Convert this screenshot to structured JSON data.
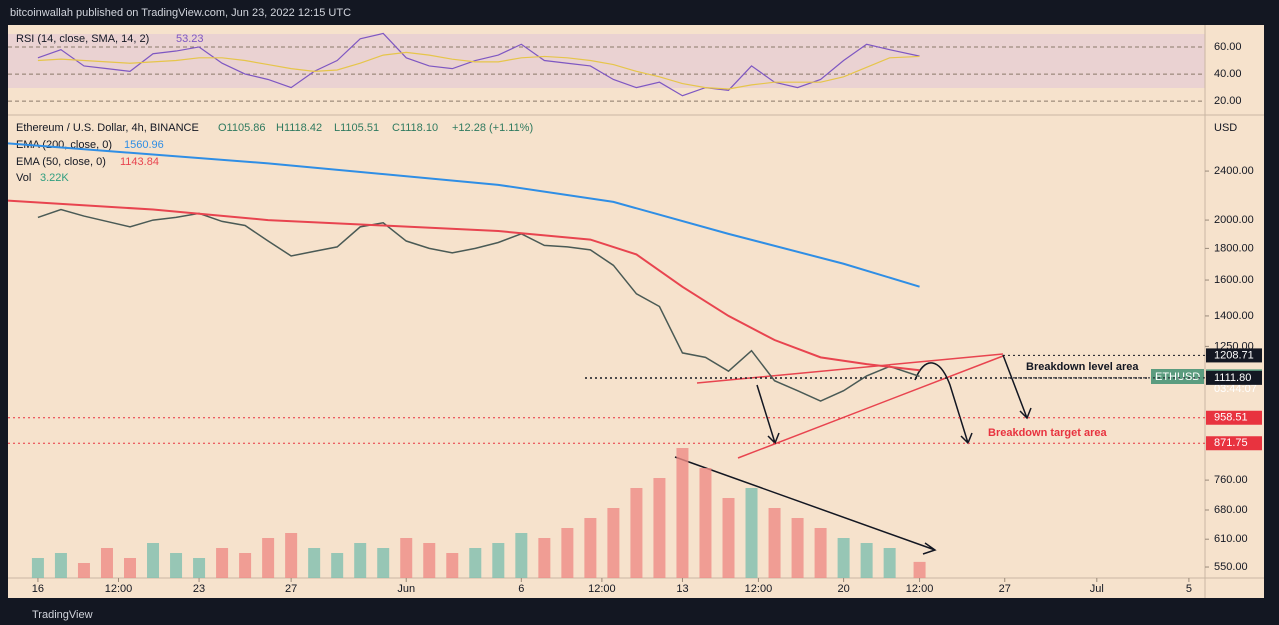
{
  "header": {
    "publisher": "bitcoinwallah published on TradingView.com, Jun 23, 2022 12:15 UTC",
    "footer": "TradingView"
  },
  "legend": {
    "rsi": "RSI (14, close, SMA, 14, 2)",
    "rsi_value": "53.23",
    "symbol": "Ethereum / U.S. Dollar, 4h, BINANCE",
    "open": "O1105.86",
    "high": "H1118.42",
    "low": "L1105.51",
    "close": "C1118.10",
    "change": "+12.28 (+1.11%)",
    "ema200": "EMA (200, close, 0)",
    "ema200_value": "1560.96",
    "ema50": "EMA (50, close, 0)",
    "ema50_value": "1143.84",
    "vol": "Vol",
    "vol_value": "3.22K",
    "currency": "USD"
  },
  "annotations": {
    "level": "Breakdown level area",
    "target": "Breakdown target area",
    "symbol_tag": "ETHUSD",
    "countdown": "03:44:07"
  },
  "chart_data": {
    "type": "line",
    "log_scale": true,
    "xlim": [
      -1.3,
      50.7
    ],
    "xticks": [
      {
        "value": 0,
        "label": "16"
      },
      {
        "value": 3.5,
        "label": "12:00"
      },
      {
        "value": 7,
        "label": "23"
      },
      {
        "value": 11,
        "label": "27"
      },
      {
        "value": 16,
        "label": "Jun"
      },
      {
        "value": 21,
        "label": "6"
      },
      {
        "value": 24.5,
        "label": "12:00"
      },
      {
        "value": 28,
        "label": "13"
      },
      {
        "value": 31.3,
        "label": "12:00"
      },
      {
        "value": 35,
        "label": "20"
      },
      {
        "value": 38.3,
        "label": "12:00"
      },
      {
        "value": 42,
        "label": "27"
      },
      {
        "value": 46,
        "label": "Jul"
      },
      {
        "value": 50,
        "label": "5"
      }
    ],
    "ylim": [
      528,
      2924
    ],
    "yticks": [
      {
        "value": 550,
        "label": "550.00"
      },
      {
        "value": 610,
        "label": "610.00"
      },
      {
        "value": 680,
        "label": "680.00"
      },
      {
        "value": 760,
        "label": "760.00"
      },
      {
        "value": 1250,
        "label": "1250.00"
      },
      {
        "value": 1400,
        "label": "1400.00"
      },
      {
        "value": 1600,
        "label": "1600.00"
      },
      {
        "value": 1800,
        "label": "1800.00"
      },
      {
        "value": 2000,
        "label": "2000.00"
      },
      {
        "value": 2400,
        "label": "2400.00"
      }
    ],
    "levels": [
      {
        "value": 1208.71,
        "label": "1208.71",
        "color": "#131722"
      },
      {
        "value": 1118.1,
        "label": "1118.10",
        "color": "#5b9c7f"
      },
      {
        "value": 1111.8,
        "label": "1111.80",
        "color": "#131722"
      },
      {
        "value": 958.51,
        "label": "958.51",
        "color": "#e8333f"
      },
      {
        "value": 871.75,
        "label": "871.75",
        "color": "#e8333f"
      }
    ],
    "series": [
      {
        "name": "ETHUSD",
        "color": "#4a5a55",
        "x": [
          0,
          1,
          2,
          3,
          4,
          5,
          6,
          7,
          8,
          9,
          10,
          11,
          12,
          13,
          14,
          15,
          16,
          17,
          18,
          19,
          20,
          21,
          22,
          23,
          24,
          25,
          26,
          27,
          28,
          29,
          30,
          31,
          32,
          33,
          34,
          35,
          36,
          37,
          38.3
        ],
        "values": [
          2020,
          2080,
          2030,
          1990,
          1950,
          2000,
          2020,
          2050,
          1990,
          1960,
          1850,
          1750,
          1780,
          1810,
          1950,
          1980,
          1850,
          1800,
          1770,
          1800,
          1840,
          1900,
          1820,
          1810,
          1790,
          1690,
          1520,
          1450,
          1220,
          1200,
          1140,
          1230,
          1100,
          1060,
          1020,
          1060,
          1120,
          1160,
          1118.1
        ]
      },
      {
        "name": "EMA (200, close, 0)",
        "color": "#2f8ee5",
        "x": [
          -1.3,
          10,
          20,
          25,
          30,
          35,
          38.3
        ],
        "values": [
          2660,
          2470,
          2280,
          2140,
          1900,
          1700,
          1560.96
        ]
      },
      {
        "name": "EMA (50, close, 0)",
        "color": "#e8444f",
        "x": [
          -1.3,
          5,
          10,
          15,
          20,
          24,
          26,
          28,
          30,
          32,
          34,
          36,
          38.3
        ],
        "values": [
          2150,
          2080,
          2000,
          1960,
          1920,
          1860,
          1760,
          1560,
          1400,
          1280,
          1200,
          1170,
          1143.84
        ]
      }
    ],
    "volume": {
      "up_color": "#7fbfaf",
      "down_color": "#ef8c86",
      "y2lim": [
        0,
        30
      ],
      "values": [
        4,
        5,
        3,
        6,
        4,
        7,
        5,
        4,
        6,
        5,
        8,
        9,
        6,
        5,
        7,
        6,
        8,
        7,
        5,
        6,
        7,
        9,
        8,
        10,
        12,
        14,
        18,
        20,
        26,
        22,
        16,
        18,
        14,
        12,
        10,
        8,
        7,
        6,
        3.22
      ]
    },
    "rsi": {
      "ylim": [
        12,
        74
      ],
      "yticks": [
        {
          "value": 20,
          "label": "20.00"
        },
        {
          "value": 40,
          "label": "40.00"
        },
        {
          "value": 60,
          "label": "60.00"
        }
      ],
      "color": "#7e57c2",
      "sma_color": "#e6c54a",
      "values": [
        52,
        58,
        46,
        44,
        42,
        55,
        57,
        60,
        48,
        40,
        36,
        30,
        42,
        50,
        66,
        70,
        52,
        46,
        44,
        50,
        54,
        62,
        50,
        48,
        46,
        36,
        30,
        34,
        24,
        30,
        28,
        46,
        34,
        30,
        36,
        50,
        62,
        58,
        53.23
      ],
      "sma": [
        50,
        51,
        50,
        49,
        48,
        49,
        50,
        52,
        52,
        50,
        47,
        44,
        42,
        43,
        48,
        54,
        56,
        54,
        51,
        49,
        49,
        52,
        53,
        52,
        50,
        47,
        42,
        38,
        33,
        30,
        29,
        32,
        34,
        34,
        34,
        38,
        45,
        52,
        53
      ]
    }
  }
}
